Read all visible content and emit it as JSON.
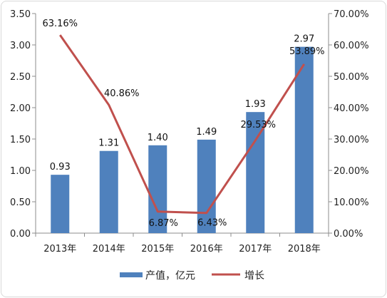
{
  "chart_data": {
    "type": "bar",
    "categories": [
      "2013年",
      "2014年",
      "2015年",
      "2016年",
      "2017年",
      "2018年"
    ],
    "series": [
      {
        "name": "产值，亿元",
        "type": "bar",
        "axis": "left",
        "color": "#4f81bd",
        "values": [
          0.93,
          1.31,
          1.4,
          1.49,
          1.93,
          2.97
        ],
        "labels": [
          "0.93",
          "1.31",
          "1.40",
          "1.49",
          "1.93",
          "2.97"
        ]
      },
      {
        "name": "增长",
        "type": "line",
        "axis": "right",
        "color": "#c0504d",
        "values": [
          63.16,
          40.86,
          6.87,
          6.43,
          29.53,
          53.89
        ],
        "labels": [
          "63.16%",
          "40.86%",
          "6.87%",
          "6.43%",
          "29.53%",
          "53.89%"
        ]
      }
    ],
    "y_left": {
      "range": [
        0,
        3.5
      ],
      "ticks": [
        "0.00",
        "0.50",
        "1.00",
        "1.50",
        "2.00",
        "2.50",
        "3.00",
        "3.50"
      ]
    },
    "y_right": {
      "range": [
        0,
        70
      ],
      "ticks": [
        "0.00%",
        "10.00%",
        "20.00%",
        "30.00%",
        "40.00%",
        "50.00%",
        "60.00%",
        "70.00%"
      ]
    },
    "grid": false,
    "legend": "bottom"
  }
}
